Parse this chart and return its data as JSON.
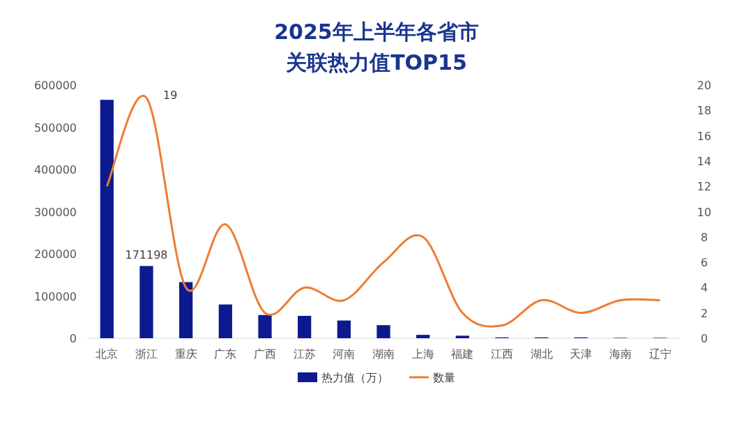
{
  "chart_data": {
    "type": "bar",
    "title": "2025年上半年各省市关联热力值TOP15",
    "categories": [
      "北京",
      "浙江",
      "重庆",
      "广东",
      "广西",
      "江苏",
      "河南",
      "湖南",
      "上海",
      "福建",
      "江西",
      "湖北",
      "天津",
      "海南",
      "辽宁"
    ],
    "series": [
      {
        "name": "热力值（万）",
        "color": "#0d1a8f",
        "values": [
          565000,
          171198,
          133000,
          80000,
          55000,
          53000,
          42000,
          31000,
          8000,
          6000,
          2000,
          2000,
          2000,
          1000,
          1000
        ],
        "value_labels": [
          null,
          "171198",
          null,
          null,
          null,
          null,
          null,
          null,
          null,
          null,
          null,
          null,
          null,
          null,
          null
        ]
      },
      {
        "name": "数量",
        "type": "line",
        "axis": "y2",
        "color": "#ed7d31",
        "values": [
          12,
          19,
          4,
          9,
          2,
          4,
          3,
          6,
          8,
          2,
          1,
          3,
          2,
          3,
          3
        ],
        "value_labels": [
          null,
          "19",
          null,
          null,
          null,
          null,
          null,
          null,
          null,
          null,
          null,
          null,
          null,
          null,
          null
        ]
      }
    ],
    "ylim": [
      0,
      600000
    ],
    "yticks": [
      0,
      100000,
      200000,
      300000,
      400000,
      500000,
      600000
    ],
    "y2lim": [
      0,
      20
    ],
    "y2ticks": [
      0,
      2,
      4,
      6,
      8,
      10,
      12,
      14,
      16,
      18,
      20
    ],
    "legend": "bottom",
    "grid": false,
    "marker": "none"
  }
}
